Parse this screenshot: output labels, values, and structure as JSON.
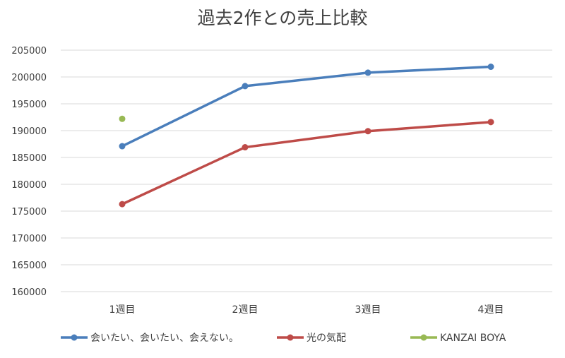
{
  "chart_data": {
    "type": "line",
    "title": "過去2作との売上比較",
    "categories": [
      "1週目",
      "2週目",
      "3週目",
      "4週目"
    ],
    "ylim": [
      160000,
      205000
    ],
    "yticks": [
      "160000",
      "165000",
      "170000",
      "175000",
      "180000",
      "185000",
      "190000",
      "195000",
      "200000",
      "205000"
    ],
    "grid": true,
    "legend_position": "bottom",
    "series": [
      {
        "name": "会いたい、会いたい、会えない。",
        "color": "#4a7ebb",
        "values": [
          187100,
          198300,
          200800,
          201900
        ]
      },
      {
        "name": "光の気配",
        "color": "#be4b48",
        "values": [
          176300,
          186900,
          189900,
          191600
        ]
      },
      {
        "name": "KANZAI BOYA",
        "color": "#98b954",
        "values": [
          192200,
          null,
          null,
          null
        ]
      }
    ]
  }
}
